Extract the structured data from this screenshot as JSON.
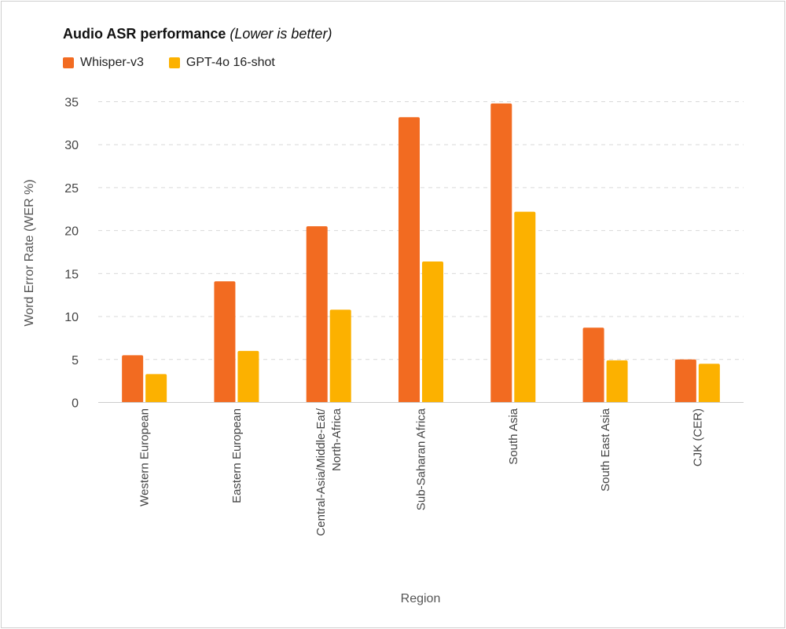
{
  "chart_data": {
    "type": "bar",
    "title": "Audio ASR performance",
    "subtitle": "(Lower is better)",
    "xlabel": "Region",
    "ylabel": "Word Error Rate (WER %)",
    "ylim": [
      0,
      35
    ],
    "yticks": [
      0,
      5,
      10,
      15,
      20,
      25,
      30,
      35
    ],
    "grid": true,
    "legend_position": "top-left",
    "categories": [
      [
        "Western European"
      ],
      [
        "Eastern European"
      ],
      [
        "Central-Asia/Middle-Eat/",
        "North-Africa"
      ],
      [
        "Sub-Saharan Africa"
      ],
      [
        "South Asia"
      ],
      [
        "South East Asia"
      ],
      [
        "CJK (CER)"
      ]
    ],
    "series": [
      {
        "name": "Whisper-v3",
        "color": "#f26b21",
        "values": [
          5.5,
          14.1,
          20.5,
          33.2,
          34.8,
          8.7,
          5.0
        ]
      },
      {
        "name": "GPT-4o 16-shot",
        "color": "#fcb100",
        "values": [
          3.3,
          6.0,
          10.8,
          16.4,
          22.2,
          4.9,
          4.5
        ]
      }
    ]
  }
}
